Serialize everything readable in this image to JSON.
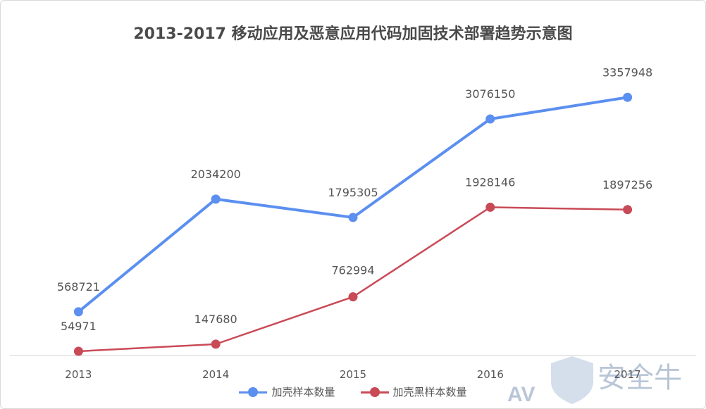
{
  "chart_data": {
    "type": "line",
    "title": "2013-2017 移动应用及恶意应用代码加固技术部署趋势示意图",
    "categories": [
      "2013",
      "2014",
      "2015",
      "2016",
      "2017"
    ],
    "ylim": [
      0,
      3800000
    ],
    "grid": false,
    "legend_position": "bottom",
    "series": [
      {
        "name": "加壳样本数量",
        "color": "#5b8ff0",
        "values": [
          568721,
          2034200,
          1795305,
          3076150,
          3357948
        ],
        "labels": [
          "568721",
          "2034200",
          "1795305",
          "3076150",
          "3357948"
        ]
      },
      {
        "name": "加壳黑样本数量",
        "color": "#c94a57",
        "values": [
          54971,
          147680,
          762994,
          1928146,
          1897256
        ],
        "labels": [
          "54971",
          "147680",
          "762994",
          "1928146",
          "1897256"
        ]
      }
    ]
  },
  "watermark": {
    "text": "安全牛",
    "prefix": "AV"
  }
}
